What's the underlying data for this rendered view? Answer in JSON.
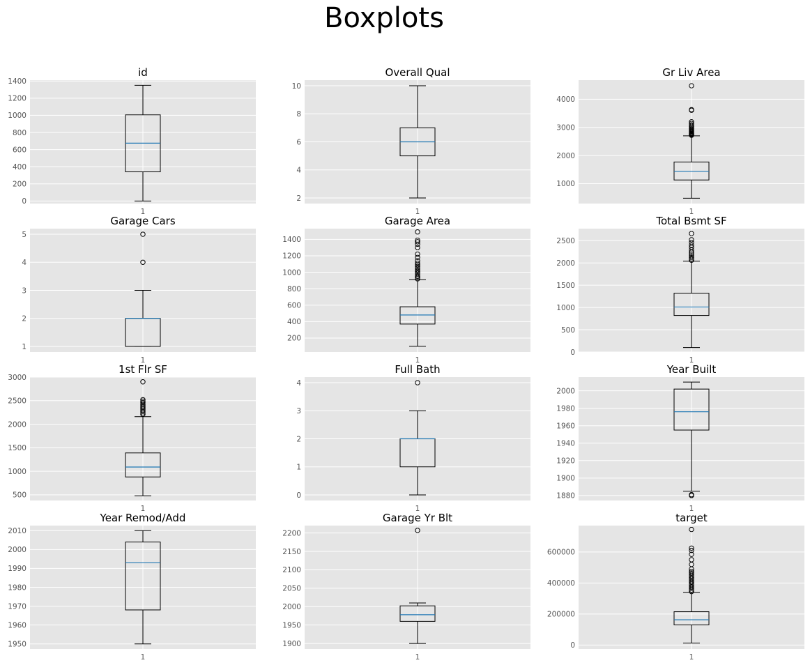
{
  "figure": {
    "title": "Boxplots"
  },
  "chart_data": [
    {
      "type": "boxplot",
      "title": "id",
      "x_ticks": [
        "1"
      ],
      "ylim": [
        -30,
        1410
      ],
      "yticks": [
        0,
        200,
        400,
        600,
        800,
        1000,
        1200,
        1400
      ],
      "box": {
        "whisker_low": 0,
        "q1": 340,
        "median": 675,
        "q3": 1005,
        "whisker_high": 1350
      },
      "outliers": []
    },
    {
      "type": "boxplot",
      "title": "Overall Qual",
      "x_ticks": [
        "1"
      ],
      "ylim": [
        1.6,
        10.4
      ],
      "yticks": [
        2,
        4,
        6,
        8,
        10
      ],
      "box": {
        "whisker_low": 2,
        "q1": 5,
        "median": 6,
        "q3": 7,
        "whisker_high": 10
      },
      "outliers": []
    },
    {
      "type": "boxplot",
      "title": "Gr Liv Area",
      "x_ticks": [
        "1"
      ],
      "ylim": [
        292,
        4680
      ],
      "yticks": [
        1000,
        2000,
        3000,
        4000
      ],
      "box": {
        "whisker_low": 480,
        "q1": 1130,
        "median": 1440,
        "q3": 1770,
        "whisker_high": 2700
      },
      "outliers": [
        2720,
        2740,
        2760,
        2780,
        2800,
        2830,
        2860,
        2880,
        2920,
        2950,
        2990,
        3040,
        3090,
        3140,
        3200,
        3610,
        3630,
        4480
      ]
    },
    {
      "type": "boxplot",
      "title": "Garage Cars",
      "x_ticks": [
        "1"
      ],
      "ylim": [
        0.8,
        5.2
      ],
      "yticks": [
        1,
        2,
        3,
        4,
        5
      ],
      "box": {
        "whisker_low": 1,
        "q1": 1,
        "median": 2,
        "q3": 2,
        "whisker_high": 3
      },
      "outliers": [
        4,
        5
      ]
    },
    {
      "type": "boxplot",
      "title": "Garage Area",
      "x_ticks": [
        "1"
      ],
      "ylim": [
        30,
        1530
      ],
      "yticks": [
        200,
        400,
        600,
        800,
        1000,
        1200,
        1400
      ],
      "box": {
        "whisker_low": 100,
        "q1": 370,
        "median": 480,
        "q3": 580,
        "whisker_high": 910
      },
      "outliers": [
        920,
        935,
        950,
        970,
        990,
        1010,
        1030,
        1050,
        1070,
        1090,
        1110,
        1140,
        1180,
        1220,
        1300,
        1340,
        1370,
        1390,
        1490
      ]
    },
    {
      "type": "boxplot",
      "title": "Total Bsmt SF",
      "x_ticks": [
        "1"
      ],
      "ylim": [
        0,
        2770
      ],
      "yticks": [
        0,
        500,
        1000,
        1500,
        2000,
        2500
      ],
      "box": {
        "whisker_low": 100,
        "q1": 820,
        "median": 1010,
        "q3": 1320,
        "whisker_high": 2040
      },
      "outliers": [
        2060,
        2090,
        2120,
        2160,
        2200,
        2240,
        2290,
        2350,
        2400,
        2460,
        2520,
        2660
      ]
    },
    {
      "type": "boxplot",
      "title": "1st Flr SF",
      "x_ticks": [
        "1"
      ],
      "ylim": [
        380,
        3000
      ],
      "yticks": [
        500,
        1000,
        1500,
        2000,
        2500,
        3000
      ],
      "box": {
        "whisker_low": 480,
        "q1": 880,
        "median": 1090,
        "q3": 1390,
        "whisker_high": 2160
      },
      "outliers": [
        2210,
        2240,
        2270,
        2300,
        2330,
        2360,
        2390,
        2420,
        2460,
        2490,
        2520,
        2900
      ]
    },
    {
      "type": "boxplot",
      "title": "Full Bath",
      "x_ticks": [
        "1"
      ],
      "ylim": [
        -0.2,
        4.2
      ],
      "yticks": [
        0,
        1,
        2,
        3,
        4
      ],
      "box": {
        "whisker_low": 0,
        "q1": 1,
        "median": 2,
        "q3": 2,
        "whisker_high": 3
      },
      "outliers": [
        4
      ]
    },
    {
      "type": "boxplot",
      "title": "Year Built",
      "x_ticks": [
        "1"
      ],
      "ylim": [
        1874.3,
        2015.7
      ],
      "yticks": [
        1880,
        1900,
        1920,
        1940,
        1960,
        1980,
        2000
      ],
      "box": {
        "whisker_low": 1885,
        "q1": 1955,
        "median": 1976,
        "q3": 2002,
        "whisker_high": 2010
      },
      "outliers": [
        1880,
        1881
      ]
    },
    {
      "type": "boxplot",
      "title": "Year Remod/Add",
      "x_ticks": [
        "1"
      ],
      "ylim": [
        1947.3,
        2012.7
      ],
      "yticks": [
        1950,
        1960,
        1970,
        1980,
        1990,
        2000,
        2010
      ],
      "box": {
        "whisker_low": 1950,
        "q1": 1968,
        "median": 1993,
        "q3": 2004,
        "whisker_high": 2010
      },
      "outliers": []
    },
    {
      "type": "boxplot",
      "title": "Garage Yr Blt",
      "x_ticks": [
        "1"
      ],
      "ylim": [
        1885,
        2220
      ],
      "yticks": [
        1900,
        1950,
        2000,
        2050,
        2100,
        2150,
        2200
      ],
      "box": {
        "whisker_low": 1900,
        "q1": 1960,
        "median": 1978,
        "q3": 2002,
        "whisker_high": 2010
      },
      "outliers": [
        2207
      ]
    },
    {
      "type": "boxplot",
      "title": "target",
      "x_ticks": [
        "1"
      ],
      "ylim": [
        -25000,
        770000
      ],
      "yticks": [
        0,
        200000,
        400000,
        600000
      ],
      "box": {
        "whisker_low": 13000,
        "q1": 130000,
        "median": 163000,
        "q3": 215000,
        "whisker_high": 340000
      },
      "outliers": [
        345000,
        355000,
        365000,
        375000,
        385000,
        395000,
        405000,
        415000,
        425000,
        435000,
        445000,
        455000,
        465000,
        475000,
        490000,
        520000,
        550000,
        585000,
        610000,
        625000,
        745000
      ]
    }
  ]
}
